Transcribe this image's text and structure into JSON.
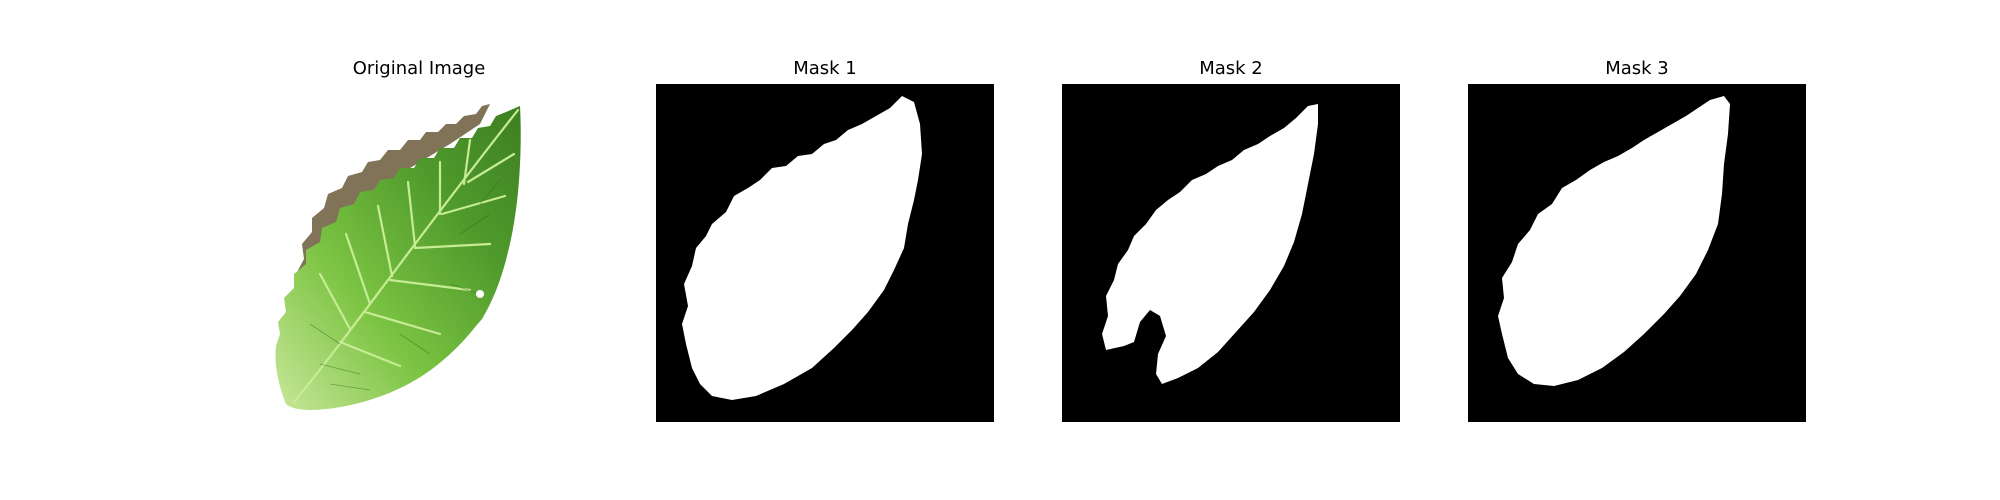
{
  "figure": {
    "panels": [
      {
        "title": "Original Image",
        "kind": "photo"
      },
      {
        "title": "Mask 1",
        "kind": "mask"
      },
      {
        "title": "Mask 2",
        "kind": "mask"
      },
      {
        "title": "Mask 3",
        "kind": "mask"
      }
    ]
  },
  "colors": {
    "background": "#ffffff",
    "mask_background": "#000000",
    "mask_foreground": "#ffffff",
    "leaf_green": "#6fbf3a",
    "leaf_dark": "#3f7f22",
    "leaf_vein": "#b8e08a",
    "leaf_shadow": "#6b5a3a"
  }
}
